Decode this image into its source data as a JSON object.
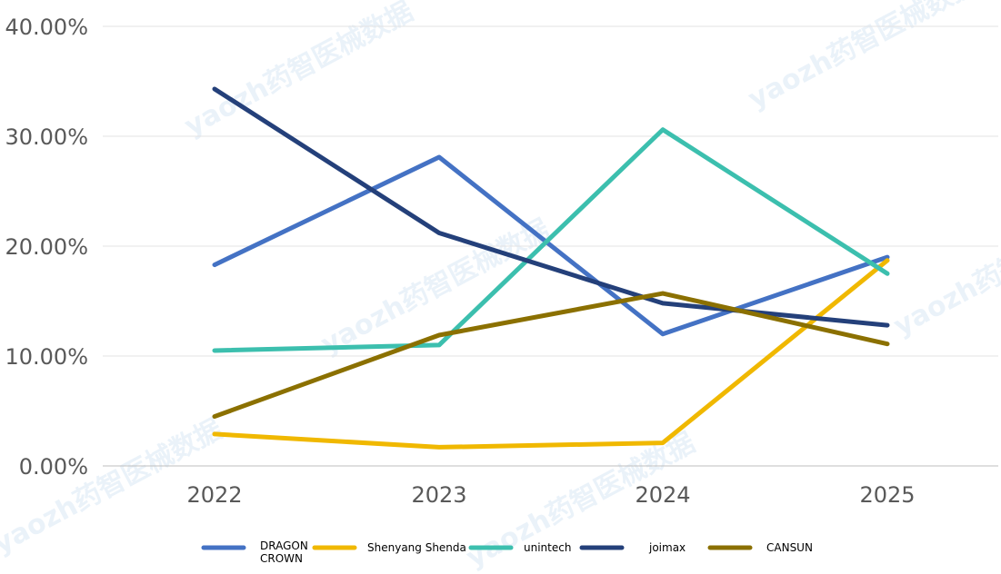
{
  "chart_data": {
    "type": "line",
    "title": "",
    "xlabel": "",
    "ylabel": "",
    "categories": [
      "2022",
      "2023",
      "2024",
      "2025"
    ],
    "ylim": [
      0,
      40
    ],
    "yticks": [
      "0.00%",
      "10.00%",
      "20.00%",
      "30.00%",
      "40.00%"
    ],
    "grid": true,
    "legend_position": "bottom",
    "series": [
      {
        "name": "DRAGON CROWN",
        "color": "#4472C4",
        "values": [
          18.3,
          28.1,
          12.0,
          19.0
        ]
      },
      {
        "name": "Shenyang Shenda",
        "color": "#F0B800",
        "values": [
          2.9,
          1.7,
          2.1,
          18.7
        ]
      },
      {
        "name": "unintech",
        "color": "#3CBFAE",
        "values": [
          10.5,
          11.0,
          30.6,
          17.5
        ]
      },
      {
        "name": "joimax",
        "color": "#24407A",
        "values": [
          34.3,
          21.2,
          14.8,
          12.8
        ]
      },
      {
        "name": "CANSUN",
        "color": "#8B7000",
        "values": [
          4.5,
          11.9,
          15.7,
          11.1
        ]
      }
    ]
  },
  "watermark": "yaozh药智医械数据"
}
